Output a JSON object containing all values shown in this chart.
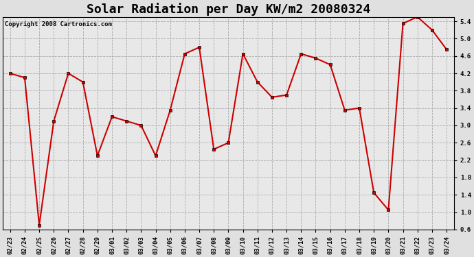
{
  "title": "Solar Radiation per Day KW/m2 20080324",
  "copyright": "Copyright 2008 Cartronics.com",
  "dates": [
    "02/23",
    "02/24",
    "02/25",
    "02/26",
    "02/27",
    "02/28",
    "02/29",
    "03/01",
    "03/02",
    "03/03",
    "03/04",
    "03/05",
    "03/06",
    "03/07",
    "03/08",
    "03/09",
    "03/10",
    "03/11",
    "03/12",
    "03/13",
    "03/14",
    "03/15",
    "03/16",
    "03/17",
    "03/18",
    "03/19",
    "03/20",
    "03/21",
    "03/22",
    "03/23",
    "03/24"
  ],
  "values": [
    4.2,
    4.1,
    0.7,
    3.1,
    4.2,
    4.0,
    2.3,
    3.2,
    3.1,
    3.0,
    2.3,
    3.35,
    4.65,
    4.8,
    2.45,
    2.6,
    4.65,
    4.0,
    3.65,
    3.7,
    4.65,
    4.55,
    4.4,
    3.35,
    3.4,
    1.45,
    1.05,
    5.35,
    5.5,
    5.2,
    4.75
  ],
  "line_color": "#cc0000",
  "marker": "s",
  "marker_size": 2.5,
  "ylim": [
    0.6,
    5.5
  ],
  "yticks": [
    0.6,
    1.0,
    1.4,
    1.8,
    2.2,
    2.6,
    3.0,
    3.4,
    3.8,
    4.2,
    4.6,
    5.0,
    5.4
  ],
  "bg_color": "#e0e0e0",
  "plot_bg_color": "#e8e8e8",
  "grid_color": "#aaaaaa",
  "title_fontsize": 13,
  "copyright_fontsize": 6.5,
  "tick_fontsize": 6.5,
  "linewidth": 1.5
}
